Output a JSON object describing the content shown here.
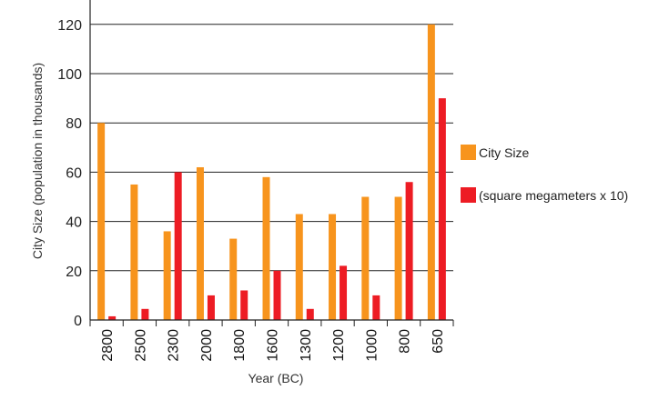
{
  "chart_data": {
    "type": "bar",
    "title": "",
    "xlabel": "Year (BC)",
    "ylabel": "City Size (population in thousands)",
    "ylim": [
      0,
      130
    ],
    "yticks": [
      0,
      20,
      40,
      60,
      80,
      100,
      120
    ],
    "grid": true,
    "legend_position": "right",
    "categories": [
      "2800",
      "2500",
      "2300",
      "2000",
      "1800",
      "1600",
      "1300",
      "1200",
      "1000",
      "800",
      "650"
    ],
    "series": [
      {
        "name": "City Size",
        "color": "#f7941d",
        "values": [
          80,
          55,
          36,
          62,
          33,
          58,
          43,
          43,
          50,
          50,
          120
        ]
      },
      {
        "name": "(square megameters x 10)",
        "color": "#ed1c24",
        "values": [
          1.5,
          4.5,
          60,
          10,
          12,
          20,
          4.5,
          22,
          10,
          56,
          90
        ]
      }
    ]
  }
}
